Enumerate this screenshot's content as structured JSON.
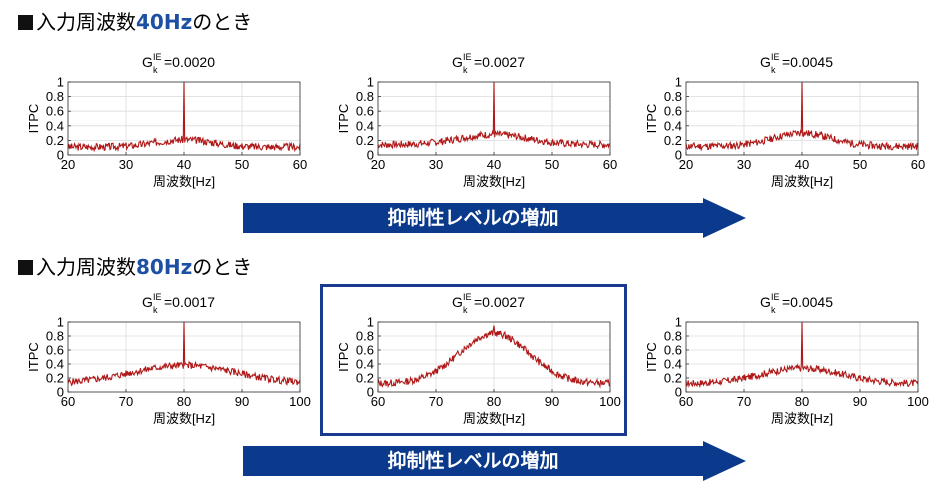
{
  "sections": [
    {
      "prefix": "入力周波数",
      "freq": "40Hz",
      "suffix": "のとき"
    },
    {
      "prefix": "入力周波数",
      "freq": "80Hz",
      "suffix": "のとき"
    }
  ],
  "arrow_label": "抑制性レベルの増加",
  "colors": {
    "series": "#b01818",
    "accent": "#1d4fa3",
    "arrow": "#0b3a8c",
    "grid": "#dcdcdc",
    "highlight_border": "#1a3a8f"
  },
  "chart_data": [
    {
      "type": "line",
      "title": {
        "base": "G",
        "sup": "IE",
        "sub": "k",
        "value": "=0.0020"
      },
      "xlabel": "周波数[Hz]",
      "ylabel": "ITPC",
      "xlim": [
        20,
        60
      ],
      "ylim": [
        0,
        1
      ],
      "xticks": [
        20,
        30,
        40,
        50,
        60
      ],
      "yticks": [
        0,
        0.2,
        0.4,
        0.6,
        0.8,
        1
      ],
      "grid": true,
      "peak_x": 40,
      "peak_y": 1.0,
      "baseline": 0.11,
      "hump": 0.1,
      "hump_width": 5,
      "noise": 0.05,
      "seed": 3
    },
    {
      "type": "line",
      "title": {
        "base": "G",
        "sup": "IE",
        "sub": "k",
        "value": "=0.0027"
      },
      "xlabel": "周波数[Hz]",
      "ylabel": "ITPC",
      "xlim": [
        20,
        60
      ],
      "ylim": [
        0,
        1
      ],
      "xticks": [
        20,
        30,
        40,
        50,
        60
      ],
      "yticks": [
        0,
        0.2,
        0.4,
        0.6,
        0.8,
        1
      ],
      "grid": true,
      "peak_x": 40,
      "peak_y": 1.0,
      "baseline": 0.14,
      "hump": 0.14,
      "hump_width": 6,
      "noise": 0.05,
      "seed": 7
    },
    {
      "type": "line",
      "title": {
        "base": "G",
        "sup": "IE",
        "sub": "k",
        "value": "=0.0045"
      },
      "xlabel": "周波数[Hz]",
      "ylabel": "ITPC",
      "xlim": [
        20,
        60
      ],
      "ylim": [
        0,
        1
      ],
      "xticks": [
        20,
        30,
        40,
        50,
        60
      ],
      "yticks": [
        0,
        0.2,
        0.4,
        0.6,
        0.8,
        1
      ],
      "grid": true,
      "peak_x": 40,
      "peak_y": 1.0,
      "baseline": 0.12,
      "hump": 0.18,
      "hump_width": 5,
      "noise": 0.05,
      "seed": 11
    },
    {
      "type": "line",
      "title": {
        "base": "G",
        "sup": "IE",
        "sub": "k",
        "value": "=0.0017"
      },
      "xlabel": "周波数[Hz]",
      "ylabel": "ITPC",
      "xlim": [
        60,
        100
      ],
      "ylim": [
        0,
        1
      ],
      "xticks": [
        60,
        70,
        80,
        90,
        100
      ],
      "yticks": [
        0,
        0.2,
        0.4,
        0.6,
        0.8,
        1
      ],
      "grid": true,
      "peak_x": 80,
      "peak_y": 1.0,
      "baseline": 0.12,
      "hump": 0.26,
      "hump_width": 9,
      "noise": 0.05,
      "seed": 5
    },
    {
      "type": "line",
      "title": {
        "base": "G",
        "sup": "IE",
        "sub": "k",
        "value": "=0.0027"
      },
      "xlabel": "周波数[Hz]",
      "ylabel": "ITPC",
      "xlim": [
        60,
        100
      ],
      "ylim": [
        0,
        1
      ],
      "xticks": [
        60,
        70,
        80,
        90,
        100
      ],
      "yticks": [
        0,
        0.2,
        0.4,
        0.6,
        0.8,
        1
      ],
      "grid": true,
      "peak_x": 80,
      "peak_y": 0.95,
      "baseline": 0.12,
      "hump": 0.72,
      "hump_width": 6,
      "noise": 0.05,
      "seed": 13
    },
    {
      "type": "line",
      "title": {
        "base": "G",
        "sup": "IE",
        "sub": "k",
        "value": "=0.0045"
      },
      "xlabel": "周波数[Hz]",
      "ylabel": "ITPC",
      "xlim": [
        60,
        100
      ],
      "ylim": [
        0,
        1
      ],
      "xticks": [
        60,
        70,
        80,
        90,
        100
      ],
      "yticks": [
        0,
        0.2,
        0.4,
        0.6,
        0.8,
        1
      ],
      "grid": true,
      "peak_x": 80,
      "peak_y": 1.0,
      "baseline": 0.12,
      "hump": 0.22,
      "hump_width": 7,
      "noise": 0.05,
      "seed": 17
    }
  ]
}
